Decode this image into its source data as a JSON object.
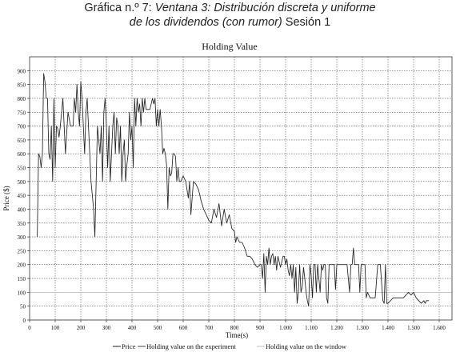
{
  "caption": {
    "line1_plain": "Gráfica n.º 7: ",
    "line1_italic": "Ventana 3: Distribución discreta y uniforme",
    "line2_italic": "de los dividendos (con rumor)",
    "line2_plain": " Sesión 1"
  },
  "chart_data": {
    "type": "line",
    "title": "Holding Value",
    "xlabel": "Time(s)",
    "ylabel": "Price ($)",
    "xlim": [
      0,
      1650
    ],
    "ylim": [
      0,
      950
    ],
    "grid": true,
    "legend_position": "bottom",
    "xticks": [
      0,
      100,
      200,
      300,
      400,
      500,
      600,
      700,
      800,
      900,
      1000,
      1100,
      1200,
      1300,
      1400,
      1500,
      1600
    ],
    "xtick_labels": [
      "0",
      "100",
      "200",
      "300",
      "400",
      "500",
      "600",
      "700",
      "800",
      "900",
      "1.000",
      "1.100",
      "1.200",
      "1.300",
      "1.400",
      "1.500",
      "1.600"
    ],
    "yticks": [
      0,
      50,
      100,
      150,
      200,
      250,
      300,
      350,
      400,
      450,
      500,
      550,
      600,
      650,
      700,
      750,
      800,
      850,
      900
    ],
    "series": [
      {
        "name": "Price",
        "color": "#222222",
        "points": [
          [
            30,
            300
          ],
          [
            35,
            600
          ],
          [
            40,
            590
          ],
          [
            45,
            550
          ],
          [
            50,
            600
          ],
          [
            55,
            890
          ],
          [
            60,
            860
          ],
          [
            65,
            800
          ],
          [
            70,
            800
          ],
          [
            75,
            600
          ],
          [
            80,
            580
          ],
          [
            85,
            700
          ],
          [
            90,
            500
          ],
          [
            95,
            800
          ],
          [
            100,
            550
          ],
          [
            105,
            700
          ],
          [
            110,
            690
          ],
          [
            115,
            660
          ],
          [
            120,
            700
          ],
          [
            130,
            800
          ],
          [
            140,
            600
          ],
          [
            150,
            750
          ],
          [
            160,
            700
          ],
          [
            170,
            700
          ],
          [
            175,
            800
          ],
          [
            180,
            750
          ],
          [
            185,
            850
          ],
          [
            190,
            750
          ],
          [
            195,
            700
          ],
          [
            200,
            860
          ],
          [
            205,
            800
          ],
          [
            210,
            700
          ],
          [
            215,
            600
          ],
          [
            220,
            750
          ],
          [
            225,
            800
          ],
          [
            230,
            700
          ],
          [
            235,
            600
          ],
          [
            240,
            500
          ],
          [
            245,
            450
          ],
          [
            250,
            400
          ],
          [
            255,
            300
          ],
          [
            260,
            500
          ],
          [
            265,
            700
          ],
          [
            270,
            650
          ],
          [
            275,
            600
          ],
          [
            280,
            700
          ],
          [
            285,
            500
          ],
          [
            290,
            750
          ],
          [
            295,
            800
          ],
          [
            300,
            700
          ],
          [
            305,
            550
          ],
          [
            310,
            700
          ],
          [
            315,
            500
          ],
          [
            320,
            600
          ],
          [
            325,
            700
          ],
          [
            330,
            750
          ],
          [
            335,
            600
          ],
          [
            340,
            730
          ],
          [
            345,
            700
          ],
          [
            350,
            600
          ],
          [
            355,
            700
          ],
          [
            360,
            500
          ],
          [
            365,
            600
          ],
          [
            370,
            650
          ],
          [
            375,
            500
          ],
          [
            380,
            560
          ],
          [
            385,
            600
          ],
          [
            390,
            750
          ],
          [
            395,
            650
          ],
          [
            400,
            700
          ],
          [
            405,
            550
          ],
          [
            410,
            800
          ],
          [
            415,
            700
          ],
          [
            420,
            800
          ],
          [
            425,
            750
          ],
          [
            430,
            780
          ],
          [
            435,
            700
          ],
          [
            440,
            800
          ],
          [
            445,
            750
          ],
          [
            450,
            800
          ],
          [
            455,
            760
          ],
          [
            460,
            760
          ],
          [
            470,
            760
          ],
          [
            480,
            800
          ],
          [
            485,
            780
          ],
          [
            490,
            800
          ],
          [
            495,
            700
          ],
          [
            500,
            760
          ],
          [
            505,
            700
          ],
          [
            510,
            760
          ],
          [
            515,
            700
          ],
          [
            520,
            600
          ],
          [
            525,
            620
          ],
          [
            530,
            600
          ],
          [
            535,
            560
          ],
          [
            540,
            400
          ],
          [
            545,
            550
          ],
          [
            550,
            520
          ],
          [
            555,
            530
          ],
          [
            560,
            600
          ],
          [
            565,
            600
          ],
          [
            570,
            590
          ],
          [
            575,
            500
          ],
          [
            580,
            550
          ],
          [
            585,
            500
          ],
          [
            590,
            500
          ],
          [
            600,
            520
          ],
          [
            610,
            500
          ],
          [
            620,
            440
          ],
          [
            625,
            500
          ],
          [
            630,
            380
          ],
          [
            640,
            500
          ],
          [
            650,
            490
          ],
          [
            660,
            470
          ],
          [
            670,
            430
          ],
          [
            680,
            400
          ],
          [
            690,
            380
          ],
          [
            700,
            360
          ],
          [
            710,
            350
          ],
          [
            720,
            400
          ],
          [
            730,
            370
          ],
          [
            740,
            420
          ],
          [
            750,
            340
          ],
          [
            760,
            400
          ],
          [
            770,
            350
          ],
          [
            780,
            380
          ],
          [
            790,
            330
          ],
          [
            800,
            320
          ],
          [
            805,
            280
          ],
          [
            810,
            300
          ],
          [
            815,
            290
          ],
          [
            820,
            280
          ],
          [
            830,
            280
          ],
          [
            840,
            260
          ],
          [
            850,
            230
          ],
          [
            860,
            230
          ],
          [
            870,
            220
          ],
          [
            880,
            200
          ],
          [
            890,
            190
          ],
          [
            900,
            200
          ],
          [
            905,
            200
          ],
          [
            910,
            150
          ],
          [
            915,
            240
          ],
          [
            920,
            100
          ],
          [
            925,
            230
          ],
          [
            930,
            200
          ],
          [
            935,
            260
          ],
          [
            940,
            200
          ],
          [
            945,
            230
          ],
          [
            950,
            240
          ],
          [
            955,
            200
          ],
          [
            960,
            230
          ],
          [
            965,
            180
          ],
          [
            970,
            230
          ],
          [
            975,
            210
          ],
          [
            980,
            190
          ],
          [
            990,
            230
          ],
          [
            995,
            230
          ],
          [
            1000,
            200
          ],
          [
            1005,
            220
          ],
          [
            1010,
            180
          ],
          [
            1015,
            160
          ],
          [
            1020,
            200
          ],
          [
            1025,
            150
          ],
          [
            1030,
            200
          ],
          [
            1035,
            100
          ],
          [
            1040,
            190
          ],
          [
            1045,
            60
          ],
          [
            1050,
            100
          ],
          [
            1055,
            200
          ],
          [
            1060,
            100
          ],
          [
            1065,
            120
          ],
          [
            1070,
            190
          ],
          [
            1075,
            150
          ],
          [
            1080,
            100
          ],
          [
            1085,
            70
          ],
          [
            1090,
            50
          ],
          [
            1095,
            200
          ],
          [
            1100,
            160
          ],
          [
            1105,
            80
          ],
          [
            1110,
            200
          ],
          [
            1115,
            200
          ],
          [
            1120,
            100
          ],
          [
            1125,
            200
          ],
          [
            1130,
            150
          ],
          [
            1135,
            100
          ],
          [
            1140,
            200
          ],
          [
            1145,
            180
          ],
          [
            1150,
            200
          ],
          [
            1155,
            200
          ],
          [
            1160,
            80
          ],
          [
            1165,
            60
          ],
          [
            1170,
            200
          ],
          [
            1180,
            200
          ],
          [
            1185,
            200
          ],
          [
            1190,
            200
          ],
          [
            1195,
            110
          ],
          [
            1200,
            200
          ],
          [
            1210,
            200
          ],
          [
            1220,
            200
          ],
          [
            1230,
            200
          ],
          [
            1240,
            200
          ],
          [
            1250,
            100
          ],
          [
            1255,
            200
          ],
          [
            1260,
            200
          ],
          [
            1265,
            260
          ],
          [
            1270,
            200
          ],
          [
            1275,
            200
          ],
          [
            1280,
            200
          ],
          [
            1285,
            200
          ],
          [
            1290,
            100
          ],
          [
            1295,
            200
          ],
          [
            1300,
            200
          ],
          [
            1305,
            200
          ],
          [
            1310,
            200
          ],
          [
            1315,
            80
          ],
          [
            1320,
            100
          ],
          [
            1330,
            80
          ],
          [
            1340,
            80
          ],
          [
            1350,
            80
          ],
          [
            1360,
            200
          ],
          [
            1370,
            200
          ],
          [
            1380,
            70
          ],
          [
            1385,
            60
          ],
          [
            1390,
            200
          ],
          [
            1395,
            60
          ],
          [
            1400,
            60
          ],
          [
            1420,
            80
          ],
          [
            1440,
            80
          ],
          [
            1460,
            80
          ],
          [
            1480,
            100
          ],
          [
            1490,
            90
          ],
          [
            1500,
            100
          ],
          [
            1510,
            80
          ],
          [
            1520,
            70
          ],
          [
            1530,
            60
          ],
          [
            1540,
            70
          ],
          [
            1545,
            60
          ],
          [
            1550,
            70
          ],
          [
            1560,
            70
          ]
        ]
      },
      {
        "name": "Holding value on the experiment",
        "color": "#444444",
        "points": []
      },
      {
        "name": "Holding value on the window",
        "color": "#bdbdbd",
        "points": [
          [
            0,
            100
          ],
          [
            1650,
            100
          ]
        ]
      }
    ]
  }
}
